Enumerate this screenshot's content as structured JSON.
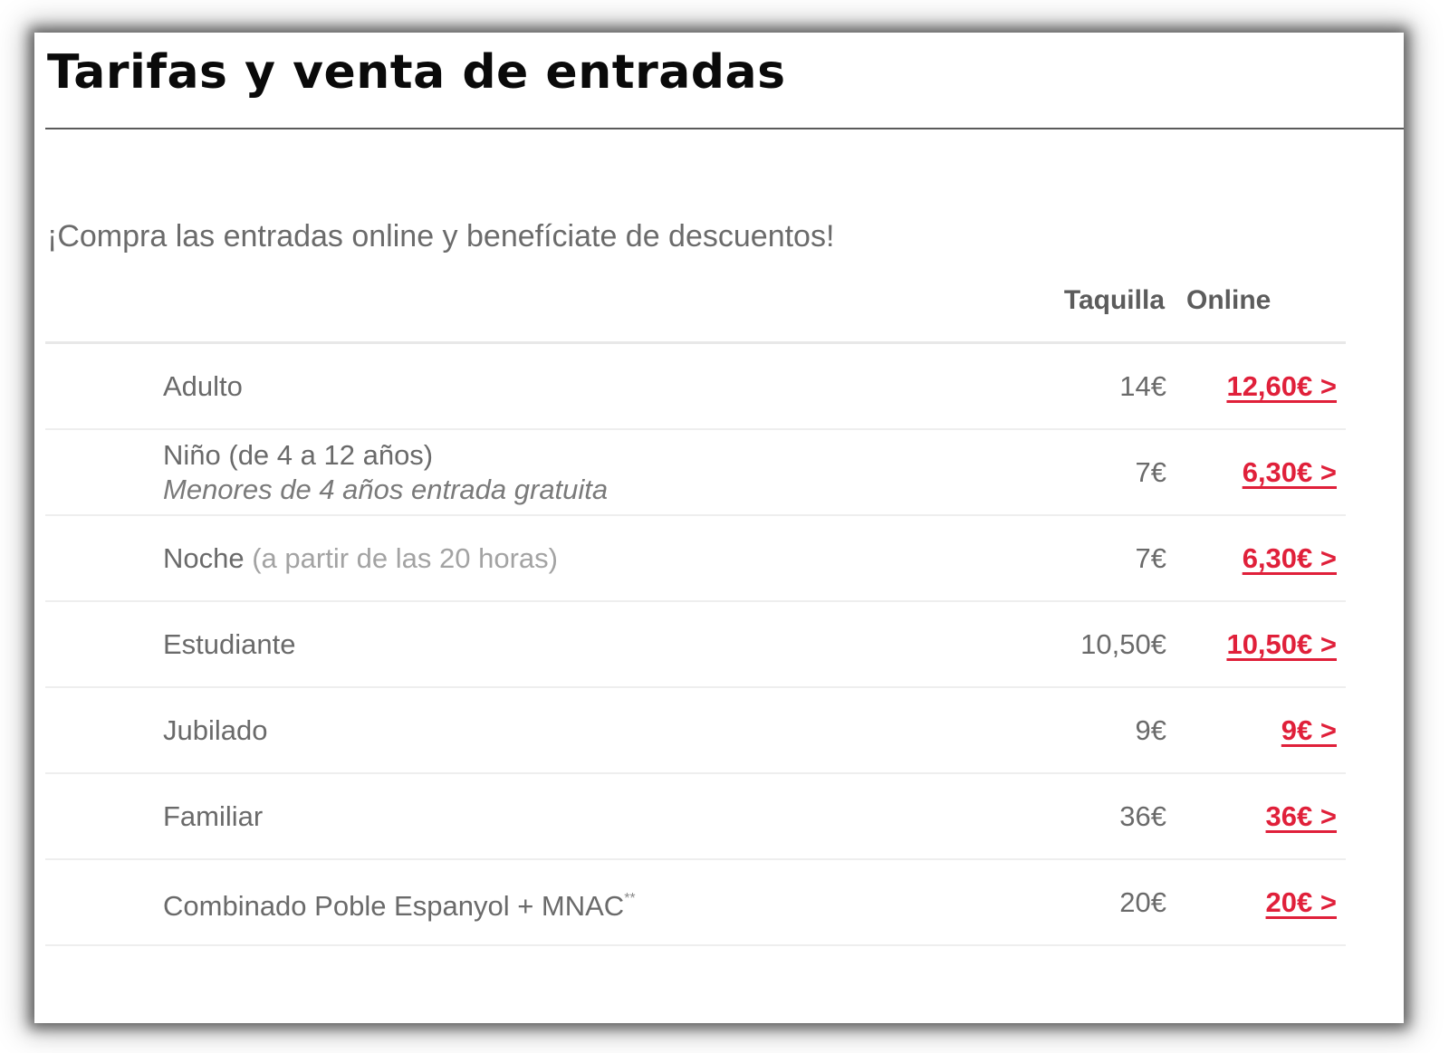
{
  "header": {
    "title": "Tarifas y venta de entradas"
  },
  "promo_text": "¡Compra las entradas online y benefíciate de descuentos!",
  "columns": {
    "box_office": "Taquilla",
    "online": "Online"
  },
  "colors": {
    "online_price": "#e0203a",
    "title": "#0a0a0a",
    "text": "#6a6a6a"
  },
  "rows": [
    {
      "label": "Adulto",
      "box_office_price": "14€",
      "online_price": "12,60€ >"
    },
    {
      "label": "Niño (de 4 a 12 años)",
      "note": "Menores de 4 años entrada gratuita",
      "box_office_price": "7€",
      "online_price": "6,30€ >"
    },
    {
      "label": "Noche",
      "detail": "(a partir de las 20 horas)",
      "box_office_price": "7€",
      "online_price": "6,30€ >"
    },
    {
      "label": "Estudiante",
      "box_office_price": "10,50€",
      "online_price": "10,50€ >"
    },
    {
      "label": "Jubilado",
      "box_office_price": "9€",
      "online_price": "9€ >"
    },
    {
      "label": "Familiar",
      "box_office_price": "36€",
      "online_price": "36€ >"
    },
    {
      "label": "Combinado Poble Espanyol + MNAC",
      "superscript": "**",
      "box_office_price": "20€",
      "online_price": "20€ >"
    }
  ]
}
